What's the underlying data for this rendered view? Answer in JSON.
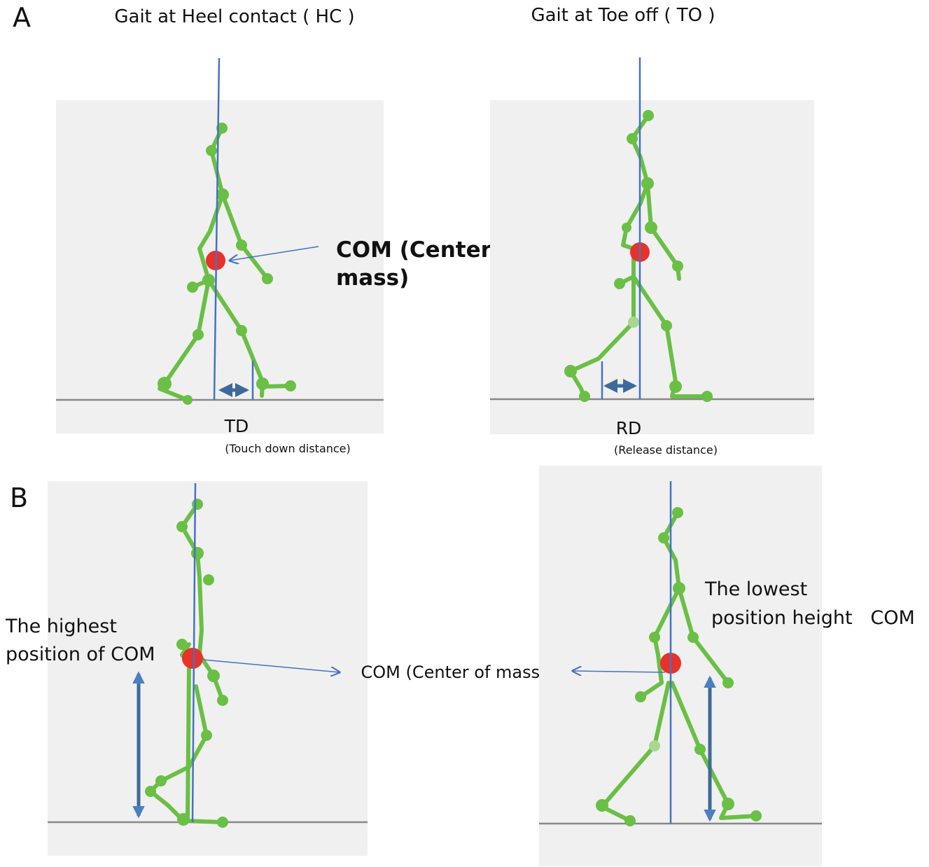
{
  "panel_labels": {
    "a": "A",
    "b": "B"
  },
  "panel_a": {
    "hc_title": "Gait at Heel contact ( HC )",
    "to_title": "Gait at Toe off ( TO )",
    "com_label": [
      "COM (Center of",
      "mass)"
    ],
    "td": "TD",
    "td_note": "(Touch down distance)",
    "rd": "RD",
    "rd_note": "(Release distance)"
  },
  "panel_b": {
    "highest": [
      "The highest",
      "position of COM"
    ],
    "com_label": "COM (Center of mass)",
    "lowest": [
      "The lowest",
      "position height   COM"
    ]
  }
}
